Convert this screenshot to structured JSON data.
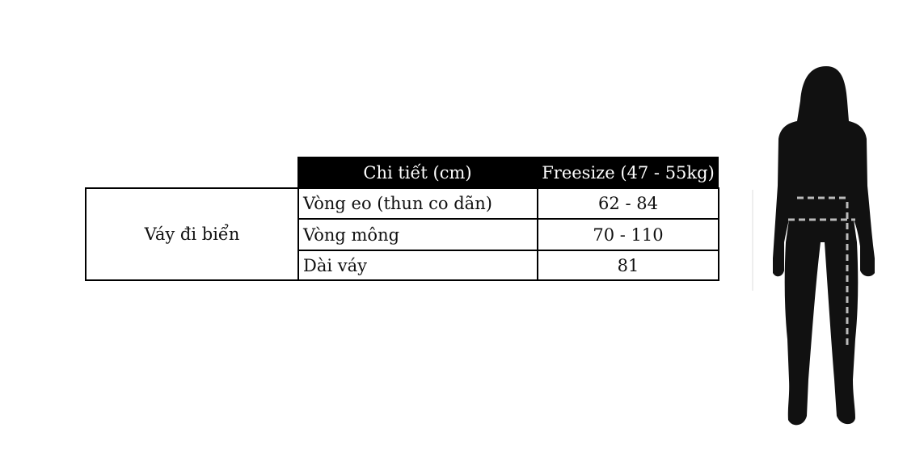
{
  "table": {
    "headers": [
      "Chi tiết (cm)",
      "Freesize (47 - 55kg)"
    ],
    "product": "Váy đi biển",
    "rows": [
      {
        "detail": "Vòng eo (thun co dãn)",
        "value": "62 - 84"
      },
      {
        "detail": "Vòng mông",
        "value": "70 - 110"
      },
      {
        "detail": "Dài váy",
        "value": "81"
      }
    ]
  },
  "figure": {
    "icon": "female-body-silhouette-icon",
    "color": "#111111",
    "measure_line_color": "#bbbbbb"
  }
}
